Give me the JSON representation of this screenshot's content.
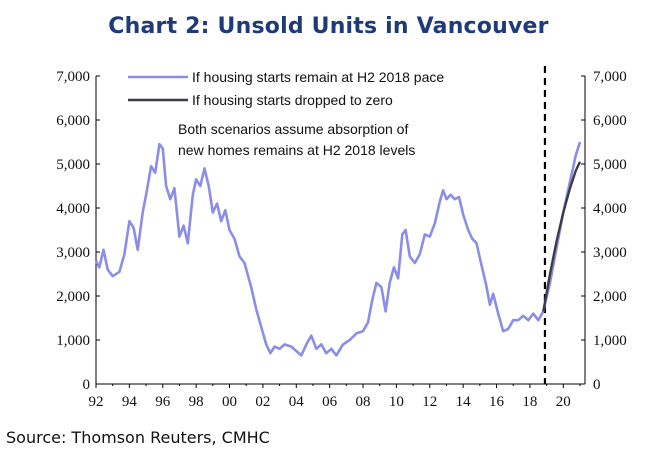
{
  "chart_data": {
    "type": "line",
    "title": "Chart 2: Unsold Units in Vancouver",
    "source": "Source: Thomson Reuters, CMHC",
    "xlabel": "",
    "ylabel": "",
    "xlim": [
      1992,
      2021.3
    ],
    "ylim": [
      0,
      7000
    ],
    "x_ticks": [
      1992,
      1994,
      1996,
      1998,
      2000,
      2002,
      2004,
      2006,
      2008,
      2010,
      2012,
      2014,
      2016,
      2018,
      2020
    ],
    "x_tick_labels": [
      "92",
      "94",
      "96",
      "98",
      "00",
      "02",
      "04",
      "06",
      "08",
      "10",
      "12",
      "14",
      "16",
      "18",
      "20"
    ],
    "y_ticks": [
      0,
      1000,
      2000,
      3000,
      4000,
      5000,
      6000,
      7000
    ],
    "y_tick_labels": [
      "0",
      "1,000",
      "2,000",
      "3,000",
      "4,000",
      "5,000",
      "6,000",
      "7,000"
    ],
    "forecast_start": 2018.9,
    "annotation": [
      "Both scenarios assume absorption of",
      "new homes remains at H2 2018 levels"
    ],
    "series": [
      {
        "name": "If housing starts remain at H2 2018 pace",
        "color": "#8b8de8",
        "points": [
          [
            1992.0,
            2800
          ],
          [
            1992.2,
            2650
          ],
          [
            1992.45,
            3050
          ],
          [
            1992.7,
            2600
          ],
          [
            1993.0,
            2450
          ],
          [
            1993.4,
            2550
          ],
          [
            1993.7,
            2950
          ],
          [
            1994.0,
            3700
          ],
          [
            1994.25,
            3550
          ],
          [
            1994.5,
            3050
          ],
          [
            1994.8,
            3900
          ],
          [
            1995.0,
            4300
          ],
          [
            1995.3,
            4950
          ],
          [
            1995.55,
            4800
          ],
          [
            1995.8,
            5450
          ],
          [
            1996.0,
            5350
          ],
          [
            1996.2,
            4500
          ],
          [
            1996.45,
            4200
          ],
          [
            1996.7,
            4450
          ],
          [
            1997.0,
            3350
          ],
          [
            1997.25,
            3600
          ],
          [
            1997.5,
            3200
          ],
          [
            1997.8,
            4300
          ],
          [
            1998.0,
            4650
          ],
          [
            1998.25,
            4500
          ],
          [
            1998.5,
            4900
          ],
          [
            1998.75,
            4500
          ],
          [
            1999.0,
            3900
          ],
          [
            1999.25,
            4100
          ],
          [
            1999.5,
            3700
          ],
          [
            1999.75,
            3950
          ],
          [
            2000.0,
            3500
          ],
          [
            2000.3,
            3300
          ],
          [
            2000.6,
            2900
          ],
          [
            2000.9,
            2750
          ],
          [
            2001.3,
            2200
          ],
          [
            2001.6,
            1700
          ],
          [
            2001.9,
            1300
          ],
          [
            2002.2,
            900
          ],
          [
            2002.45,
            700
          ],
          [
            2002.7,
            850
          ],
          [
            2003.0,
            800
          ],
          [
            2003.3,
            900
          ],
          [
            2003.7,
            850
          ],
          [
            2004.0,
            750
          ],
          [
            2004.3,
            650
          ],
          [
            2004.6,
            900
          ],
          [
            2004.9,
            1100
          ],
          [
            2005.2,
            800
          ],
          [
            2005.5,
            900
          ],
          [
            2005.8,
            700
          ],
          [
            2006.1,
            800
          ],
          [
            2006.4,
            650
          ],
          [
            2006.8,
            900
          ],
          [
            2007.2,
            1000
          ],
          [
            2007.6,
            1150
          ],
          [
            2008.0,
            1200
          ],
          [
            2008.3,
            1400
          ],
          [
            2008.55,
            1900
          ],
          [
            2008.8,
            2300
          ],
          [
            2009.1,
            2200
          ],
          [
            2009.35,
            1650
          ],
          [
            2009.6,
            2300
          ],
          [
            2009.85,
            2650
          ],
          [
            2010.1,
            2400
          ],
          [
            2010.35,
            3400
          ],
          [
            2010.55,
            3500
          ],
          [
            2010.8,
            2900
          ],
          [
            2011.1,
            2750
          ],
          [
            2011.4,
            2950
          ],
          [
            2011.7,
            3400
          ],
          [
            2012.0,
            3350
          ],
          [
            2012.3,
            3650
          ],
          [
            2012.6,
            4150
          ],
          [
            2012.8,
            4400
          ],
          [
            2013.0,
            4200
          ],
          [
            2013.25,
            4300
          ],
          [
            2013.5,
            4200
          ],
          [
            2013.75,
            4250
          ],
          [
            2014.0,
            3850
          ],
          [
            2014.3,
            3500
          ],
          [
            2014.55,
            3300
          ],
          [
            2014.8,
            3200
          ],
          [
            2015.1,
            2700
          ],
          [
            2015.35,
            2300
          ],
          [
            2015.6,
            1800
          ],
          [
            2015.8,
            2050
          ],
          [
            2016.1,
            1600
          ],
          [
            2016.4,
            1200
          ],
          [
            2016.7,
            1250
          ],
          [
            2017.0,
            1450
          ],
          [
            2017.3,
            1450
          ],
          [
            2017.6,
            1550
          ],
          [
            2017.9,
            1450
          ],
          [
            2018.2,
            1600
          ],
          [
            2018.5,
            1450
          ],
          [
            2018.8,
            1650
          ],
          [
            2019.2,
            2300
          ],
          [
            2019.6,
            3100
          ],
          [
            2020.0,
            3900
          ],
          [
            2020.4,
            4600
          ],
          [
            2020.75,
            5200
          ],
          [
            2021.0,
            5500
          ]
        ]
      },
      {
        "name": "If housing starts dropped to zero",
        "color": "#3c3c46",
        "points": [
          [
            2018.8,
            1650
          ],
          [
            2019.2,
            2500
          ],
          [
            2019.6,
            3250
          ],
          [
            2020.0,
            3900
          ],
          [
            2020.4,
            4450
          ],
          [
            2020.75,
            4850
          ],
          [
            2021.0,
            5050
          ]
        ]
      }
    ]
  }
}
